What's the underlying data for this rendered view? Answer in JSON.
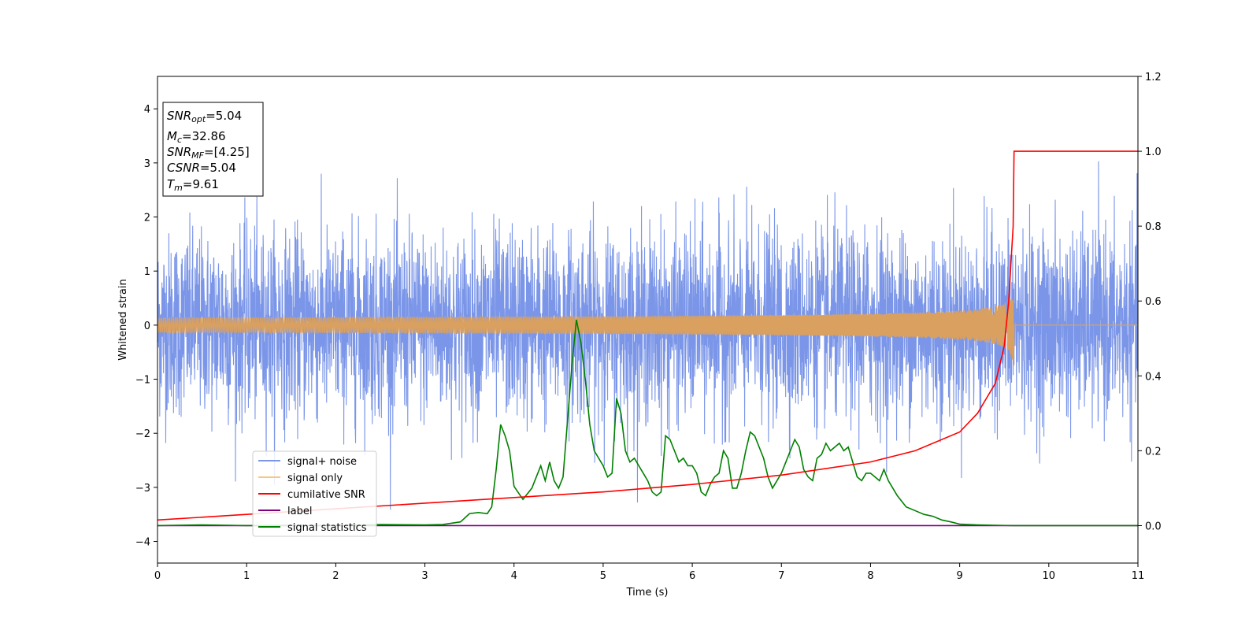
{
  "chart_data": {
    "type": "line",
    "xlabel": "Time (s)",
    "ylabel": "Whitened strain",
    "xlim": [
      0,
      11
    ],
    "ylim": [
      -4.4,
      4.6
    ],
    "y2lim": [
      -0.1,
      1.2
    ],
    "grid": false,
    "legend_position": "lower-left",
    "x_ticks": [
      "0",
      "1",
      "2",
      "3",
      "4",
      "5",
      "6",
      "7",
      "8",
      "9",
      "10",
      "11"
    ],
    "y_ticks": [
      "−4",
      "−3",
      "−2",
      "−1",
      "0",
      "1",
      "2",
      "3",
      "4"
    ],
    "y2_ticks": [
      "0.0",
      "0.2",
      "0.4",
      "0.6",
      "0.8",
      "1.0",
      "1.2"
    ],
    "info_box": {
      "snr_opt": {
        "sym": "SNR",
        "sub": "opt",
        "val": "=5.04"
      },
      "mc": {
        "sym": "M",
        "sub": "c",
        "val": "=32.86"
      },
      "snr_mf": {
        "sym": "SNR",
        "sub": "MF",
        "val": "=[4.25]"
      },
      "csnr": {
        "sym": "CSNR",
        "sub": "",
        "val": "=5.04"
      },
      "tm": {
        "sym": "T",
        "sub": "m",
        "val": "=9.61"
      }
    },
    "series": [
      {
        "name": "signal+ noise",
        "color": "#7b96e8",
        "axis": "left",
        "kind": "noise",
        "std": 0.85,
        "max_abs": 3.7
      },
      {
        "name": "signal only",
        "color": "#f5c87a",
        "axis": "left",
        "kind": "chirp",
        "merger_time": 9.61,
        "peak_amplitude": 0.95
      },
      {
        "name": "cumilative SNR",
        "color": "#ff0000",
        "axis": "right",
        "x": [
          0,
          1,
          2,
          3,
          4,
          5,
          6,
          7,
          8,
          8.5,
          9,
          9.2,
          9.4,
          9.5,
          9.55,
          9.6,
          9.61,
          11
        ],
        "y": [
          0.015,
          0.03,
          0.045,
          0.06,
          0.075,
          0.09,
          0.11,
          0.135,
          0.17,
          0.2,
          0.25,
          0.3,
          0.38,
          0.48,
          0.6,
          0.8,
          1.0,
          1.0
        ]
      },
      {
        "name": "label",
        "color": "#800080",
        "axis": "right",
        "x": [
          0,
          11
        ],
        "y": [
          0,
          0
        ]
      },
      {
        "name": "signal statistics",
        "color": "#008000",
        "axis": "right",
        "x": [
          0,
          0.5,
          1,
          1.5,
          2,
          2.5,
          3,
          3.2,
          3.4,
          3.5,
          3.6,
          3.7,
          3.75,
          3.8,
          3.85,
          3.9,
          3.95,
          4.0,
          4.1,
          4.2,
          4.3,
          4.35,
          4.4,
          4.45,
          4.5,
          4.55,
          4.6,
          4.65,
          4.7,
          4.75,
          4.8,
          4.85,
          4.9,
          4.95,
          5.0,
          5.05,
          5.1,
          5.15,
          5.2,
          5.25,
          5.3,
          5.35,
          5.4,
          5.45,
          5.5,
          5.55,
          5.6,
          5.65,
          5.7,
          5.75,
          5.8,
          5.85,
          5.9,
          5.95,
          6.0,
          6.05,
          6.1,
          6.15,
          6.2,
          6.25,
          6.3,
          6.35,
          6.4,
          6.45,
          6.5,
          6.55,
          6.6,
          6.65,
          6.7,
          6.75,
          6.8,
          6.85,
          6.9,
          6.95,
          7.0,
          7.05,
          7.1,
          7.15,
          7.2,
          7.25,
          7.3,
          7.35,
          7.4,
          7.45,
          7.5,
          7.55,
          7.6,
          7.65,
          7.7,
          7.75,
          7.8,
          7.85,
          7.9,
          7.95,
          8.0,
          8.05,
          8.1,
          8.15,
          8.2,
          8.25,
          8.3,
          8.4,
          8.5,
          8.6,
          8.7,
          8.8,
          8.9,
          9.0,
          9.2,
          9.4,
          9.6,
          9.8,
          10,
          10.5,
          11
        ],
        "y": [
          0.0,
          0.002,
          0.0,
          0.001,
          0.0,
          0.003,
          0.002,
          0.003,
          0.01,
          0.032,
          0.035,
          0.032,
          0.05,
          0.15,
          0.27,
          0.24,
          0.2,
          0.105,
          0.07,
          0.1,
          0.16,
          0.12,
          0.17,
          0.12,
          0.1,
          0.13,
          0.28,
          0.43,
          0.55,
          0.49,
          0.39,
          0.27,
          0.2,
          0.18,
          0.16,
          0.13,
          0.14,
          0.34,
          0.3,
          0.2,
          0.17,
          0.18,
          0.16,
          0.14,
          0.12,
          0.09,
          0.08,
          0.09,
          0.24,
          0.23,
          0.2,
          0.17,
          0.18,
          0.16,
          0.16,
          0.14,
          0.09,
          0.08,
          0.11,
          0.13,
          0.14,
          0.2,
          0.18,
          0.1,
          0.1,
          0.14,
          0.2,
          0.25,
          0.24,
          0.21,
          0.18,
          0.13,
          0.1,
          0.12,
          0.14,
          0.17,
          0.2,
          0.23,
          0.21,
          0.15,
          0.13,
          0.12,
          0.18,
          0.19,
          0.22,
          0.2,
          0.21,
          0.22,
          0.2,
          0.21,
          0.17,
          0.13,
          0.12,
          0.14,
          0.14,
          0.13,
          0.12,
          0.15,
          0.12,
          0.1,
          0.08,
          0.05,
          0.04,
          0.03,
          0.025,
          0.015,
          0.01,
          0.004,
          0.002,
          0.001,
          0.0,
          0.0,
          0.0,
          0.0,
          0.0
        ]
      }
    ]
  }
}
